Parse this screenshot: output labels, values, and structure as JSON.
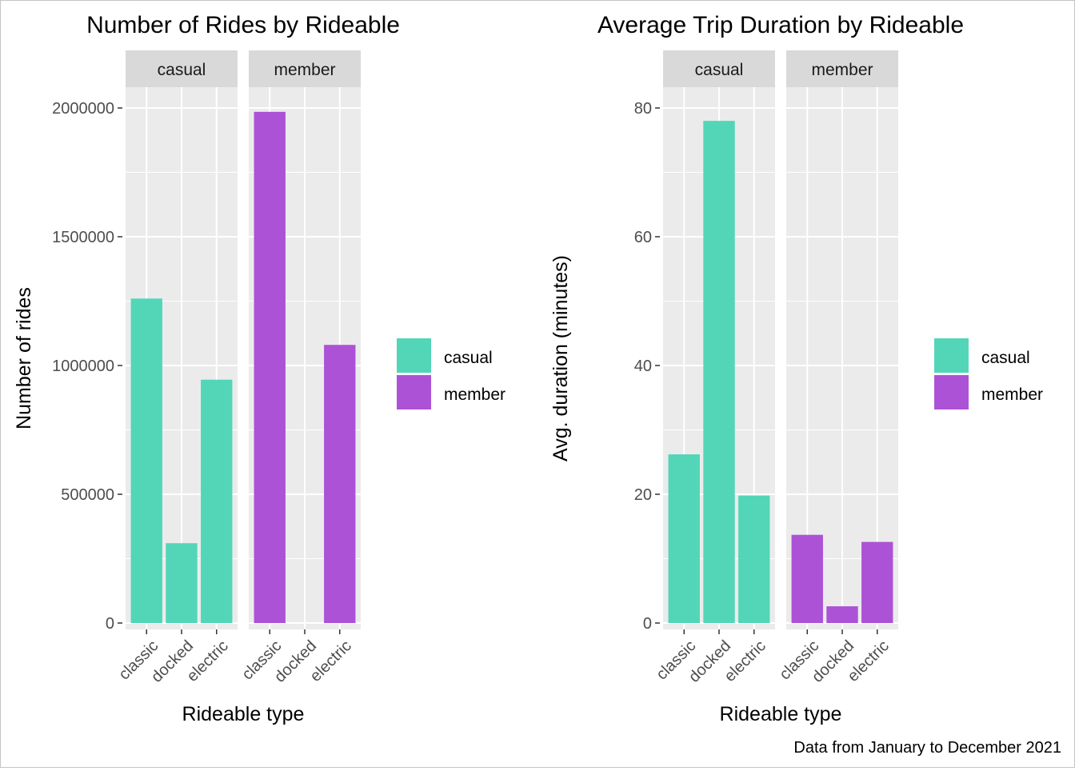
{
  "caption": "Data from January to December 2021",
  "colors": {
    "casual": "#52D6B7",
    "member": "#AC52D6"
  },
  "legend": {
    "items": [
      "casual",
      "member"
    ]
  },
  "chart_data": [
    {
      "type": "bar",
      "title": "Number of Rides by Rideable",
      "xlabel": "Rideable type",
      "ylabel": "Number of rides",
      "facets": [
        "casual",
        "member"
      ],
      "categories": [
        "classic",
        "docked",
        "electric"
      ],
      "series": [
        {
          "name": "casual",
          "facet": "casual",
          "values": [
            1260000,
            310000,
            945000
          ]
        },
        {
          "name": "member",
          "facet": "member",
          "values": [
            1985000,
            0,
            1080000
          ]
        }
      ],
      "ylim": [
        0,
        2000000
      ],
      "yticks": [
        0,
        500000,
        1000000,
        1500000,
        2000000
      ],
      "ytick_labels": [
        "0",
        "500000",
        "1000000",
        "1500000",
        "2000000"
      ],
      "grid": true,
      "legend_position": "right"
    },
    {
      "type": "bar",
      "title": "Average Trip Duration by Rideable",
      "xlabel": "Rideable type",
      "ylabel": "Avg. duration (minutes)",
      "facets": [
        "casual",
        "member"
      ],
      "categories": [
        "classic",
        "docked",
        "electric"
      ],
      "series": [
        {
          "name": "casual",
          "facet": "casual",
          "values": [
            26.2,
            78.0,
            19.8
          ]
        },
        {
          "name": "member",
          "facet": "member",
          "values": [
            13.7,
            2.6,
            12.6
          ]
        }
      ],
      "ylim": [
        0,
        80
      ],
      "yticks": [
        0,
        20,
        40,
        60,
        80
      ],
      "ytick_labels": [
        "0",
        "20",
        "40",
        "60",
        "80"
      ],
      "grid": true,
      "legend_position": "right"
    }
  ]
}
